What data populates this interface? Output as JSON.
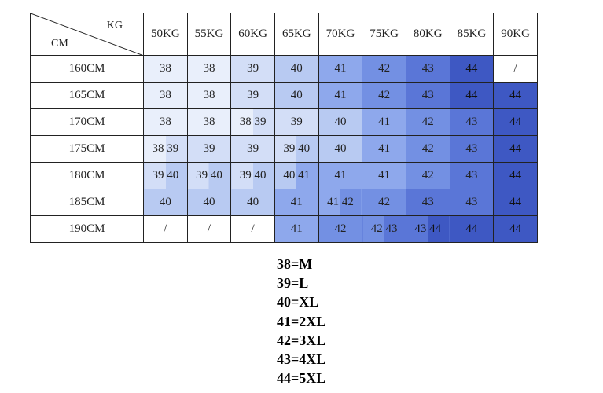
{
  "table": {
    "corner": {
      "top": "KG",
      "bottom": "CM"
    },
    "columns": [
      "50KG",
      "55KG",
      "60KG",
      "65KG",
      "70KG",
      "75KG",
      "80KG",
      "85KG",
      "90KG"
    ],
    "rows": [
      {
        "label": "160CM",
        "cells": [
          "38",
          "38",
          "39",
          "40",
          "41",
          "42",
          "43",
          "44",
          "/"
        ]
      },
      {
        "label": "165CM",
        "cells": [
          "38",
          "38",
          "39",
          "40",
          "41",
          "42",
          "43",
          "44",
          "44"
        ]
      },
      {
        "label": "170CM",
        "cells": [
          "38",
          "38",
          "38 39",
          "39",
          "40",
          "41",
          "42",
          "43",
          "44"
        ]
      },
      {
        "label": "175CM",
        "cells": [
          "38 39",
          "39",
          "39",
          "39 40",
          "40",
          "41",
          "42",
          "43",
          "44"
        ]
      },
      {
        "label": "180CM",
        "cells": [
          "39 40",
          "39 40",
          "39 40",
          "40 41",
          "41",
          "41",
          "42",
          "43",
          "44"
        ]
      },
      {
        "label": "185CM",
        "cells": [
          "40",
          "40",
          "40",
          "41",
          "41 42",
          "42",
          "43",
          "43",
          "44"
        ]
      },
      {
        "label": "190CM",
        "cells": [
          "/",
          "/",
          "/",
          "41",
          "42",
          "42 43",
          "43 44",
          "44",
          "44"
        ]
      }
    ]
  },
  "legend": [
    "38=M",
    "39=L",
    "40=XL",
    "41=2XL",
    "42=3XL",
    "43=4XL",
    "44=5XL"
  ]
}
